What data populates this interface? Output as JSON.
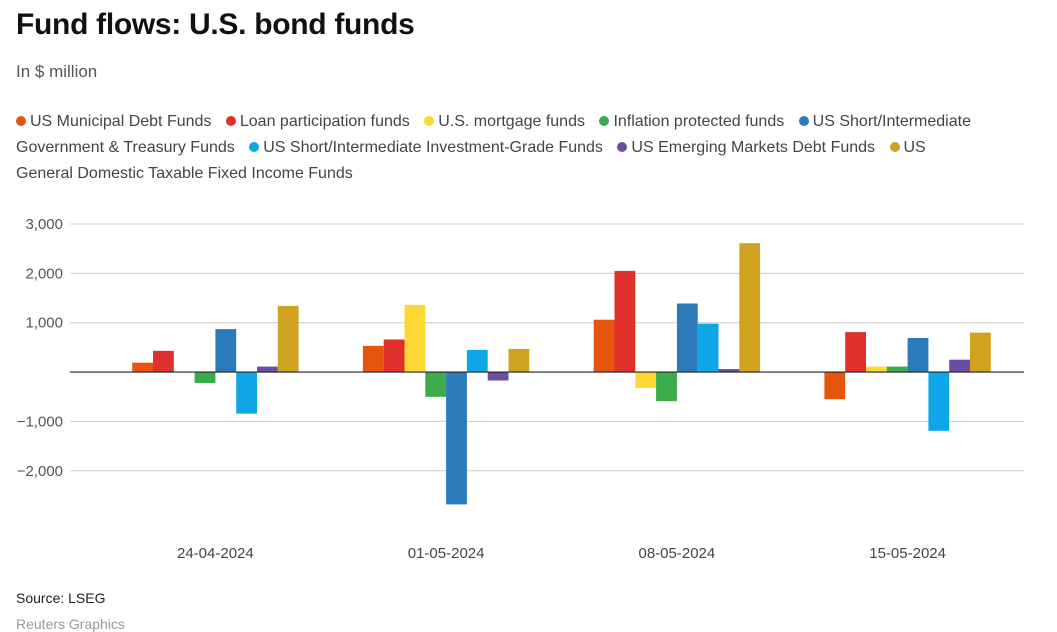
{
  "chart_data": {
    "type": "bar",
    "title": "Fund flows: U.S. bond funds",
    "subtitle": "In $ million",
    "xlabel": "",
    "ylabel": "",
    "ylim": [
      -3200,
      3000
    ],
    "yticks": [
      3000,
      2000,
      1000,
      0,
      -1000,
      -2000
    ],
    "ytick_labels": [
      "3,000",
      "2,000",
      "1,000",
      "",
      "−1,000",
      "−2,000"
    ],
    "categories": [
      "24-04-2024",
      "01-05-2024",
      "08-05-2024",
      "15-05-2024"
    ],
    "series": [
      {
        "name": "US Municipal Debt Funds",
        "color": "#e6550d",
        "values": [
          190,
          530,
          1060,
          -550
        ]
      },
      {
        "name": "Loan participation funds",
        "color": "#e0302b",
        "values": [
          430,
          660,
          2050,
          810
        ]
      },
      {
        "name": "U.S. mortgage funds",
        "color": "#fdd835",
        "values": [
          0,
          1360,
          -320,
          110
        ]
      },
      {
        "name": "Inflation protected funds",
        "color": "#3cab4b",
        "values": [
          -220,
          -500,
          -590,
          110
        ]
      },
      {
        "name": "US Short/Intermediate Government & Treasury Funds",
        "color": "#2b7bba",
        "values": [
          870,
          -2680,
          1390,
          690
        ]
      },
      {
        "name": "US Short/Intermediate Investment-Grade Funds",
        "color": "#0fa6e8",
        "values": [
          -840,
          450,
          980,
          -1190
        ]
      },
      {
        "name": "US Emerging Markets Debt Funds",
        "color": "#6a4fa0",
        "values": [
          110,
          -170,
          60,
          250
        ]
      },
      {
        "name": "US General Domestic Taxable Fixed Income Funds",
        "color": "#cfa21f",
        "values": [
          1340,
          470,
          2610,
          800
        ]
      }
    ],
    "legend_position": "top",
    "grid": true
  },
  "source": "Source: LSEG",
  "footer_faded": "Reuters Graphics"
}
